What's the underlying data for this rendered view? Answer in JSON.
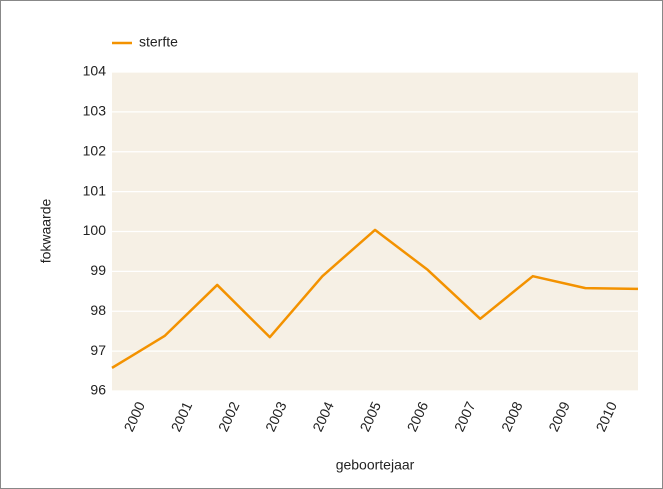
{
  "chart_data": {
    "type": "line",
    "x_label": "geboortejaar",
    "y_label": "fokwaarde",
    "categories": [
      "2000",
      "2001",
      "2002",
      "2003",
      "2004",
      "2005",
      "2006",
      "2007",
      "2008",
      "2009",
      "2010"
    ],
    "series": [
      {
        "name": "sterfte",
        "color": "#f39200",
        "values": [
          96.58,
          97.38,
          98.66,
          97.35,
          98.88,
          100.04,
          99.04,
          97.81,
          98.88,
          98.58,
          98.56
        ]
      }
    ],
    "ylim": [
      96,
      104
    ],
    "yticks": [
      96,
      97,
      98,
      99,
      100,
      101,
      102,
      103,
      104
    ],
    "grid": true,
    "legend": "top-left"
  }
}
